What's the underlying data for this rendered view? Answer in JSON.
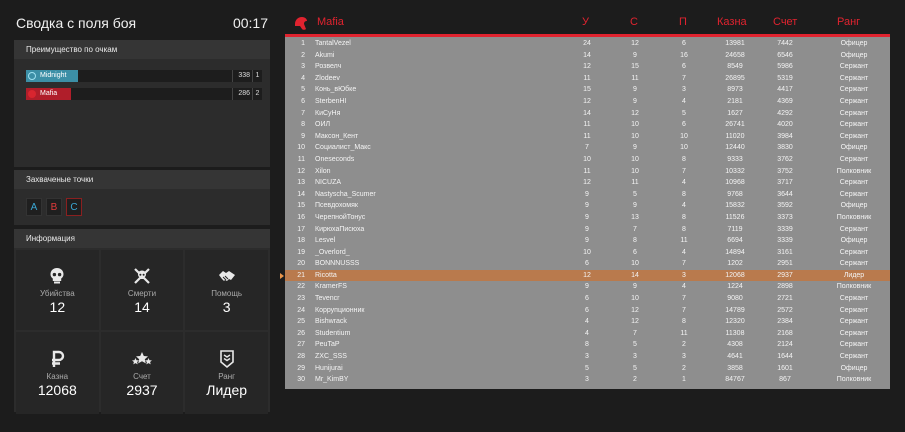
{
  "header": {
    "title": "Сводка с поля боя",
    "time": "00:17"
  },
  "score_panel": {
    "title": "Преимущество по очкам",
    "teams": [
      {
        "name": "Midnight",
        "score": "338",
        "rank": "1",
        "bar_fraction": 0.22,
        "color": "#3c8fa6",
        "icon": "midnight-icon"
      },
      {
        "name": "Mafia",
        "score": "286",
        "rank": "2",
        "bar_fraction": 0.19,
        "color": "#b01e2a",
        "icon": "mafia-icon"
      }
    ]
  },
  "points_panel": {
    "title": "Захваченые точки",
    "points": [
      "A",
      "B",
      "C"
    ]
  },
  "info_panel": {
    "title": "Информация",
    "stats": [
      {
        "icon": "skull-icon",
        "label": "Убийства",
        "value": "12"
      },
      {
        "icon": "skull-crossbones-icon",
        "label": "Смерти",
        "value": "14"
      },
      {
        "icon": "handshake-icon",
        "label": "Помощь",
        "value": "3"
      },
      {
        "icon": "ruble-icon",
        "label": "Казна",
        "value": "12068"
      },
      {
        "icon": "stars-icon",
        "label": "Счет",
        "value": "2937"
      },
      {
        "icon": "rank-badge-icon",
        "label": "Ранг",
        "value": "Лидер"
      }
    ]
  },
  "table": {
    "team_name": "Mafia",
    "columns": {
      "u": "У",
      "s": "С",
      "p": "П",
      "kazna": "Казна",
      "schet": "Счет",
      "rang": "Ранг"
    },
    "highlight_index": 20,
    "rows": [
      [
        "1",
        "TantalVezel",
        "24",
        "12",
        "6",
        "13981",
        "7442",
        "Офицер"
      ],
      [
        "2",
        "Akumi",
        "14",
        "9",
        "16",
        "24658",
        "6546",
        "Офицер"
      ],
      [
        "3",
        "Розвелч",
        "12",
        "15",
        "6",
        "8549",
        "5986",
        "Сержант"
      ],
      [
        "4",
        "Zlodeev",
        "11",
        "11",
        "7",
        "26895",
        "5319",
        "Сержант"
      ],
      [
        "5",
        "Конь_вЮбке",
        "15",
        "9",
        "3",
        "8973",
        "4417",
        "Сержант"
      ],
      [
        "6",
        "SterbenHI",
        "12",
        "9",
        "4",
        "2181",
        "4369",
        "Сержант"
      ],
      [
        "7",
        "КиСуНя",
        "14",
        "12",
        "5",
        "1627",
        "4292",
        "Сержант"
      ],
      [
        "8",
        "ОИЛ",
        "11",
        "10",
        "6",
        "26741",
        "4020",
        "Сержант"
      ],
      [
        "9",
        "Максон_Кент",
        "11",
        "10",
        "10",
        "11020",
        "3984",
        "Сержант"
      ],
      [
        "10",
        "Социалист_Макс",
        "7",
        "9",
        "10",
        "12440",
        "3830",
        "Офицер"
      ],
      [
        "11",
        "Oneseconds",
        "10",
        "10",
        "8",
        "9333",
        "3762",
        "Сержант"
      ],
      [
        "12",
        "Xilon",
        "11",
        "10",
        "7",
        "10332",
        "3752",
        "Полковник"
      ],
      [
        "13",
        "NICUZA",
        "12",
        "11",
        "4",
        "10968",
        "3717",
        "Сержант"
      ],
      [
        "14",
        "Nastyscha_Scumer",
        "9",
        "5",
        "8",
        "9768",
        "3644",
        "Сержант"
      ],
      [
        "15",
        "Псевдохомяк",
        "9",
        "9",
        "4",
        "15832",
        "3592",
        "Офицер"
      ],
      [
        "16",
        "ЧерепнойТонус",
        "9",
        "13",
        "8",
        "11526",
        "3373",
        "Полковник"
      ],
      [
        "17",
        "КирюхаПисюха",
        "9",
        "7",
        "8",
        "7119",
        "3339",
        "Сержант"
      ],
      [
        "18",
        "Lesvel",
        "9",
        "8",
        "11",
        "6694",
        "3339",
        "Офицер"
      ],
      [
        "19",
        "_Overlord_",
        "10",
        "6",
        "4",
        "14894",
        "3161",
        "Сержант"
      ],
      [
        "20",
        "BONNNUSSS",
        "6",
        "10",
        "7",
        "1202",
        "2951",
        "Сержант"
      ],
      [
        "21",
        "Ricotta",
        "12",
        "14",
        "3",
        "12068",
        "2937",
        "Лидер"
      ],
      [
        "22",
        "KramerFS",
        "9",
        "9",
        "4",
        "1224",
        "2898",
        "Полковник"
      ],
      [
        "23",
        "Tevencr",
        "6",
        "10",
        "7",
        "9080",
        "2721",
        "Сержант"
      ],
      [
        "24",
        "Коррупционник",
        "6",
        "12",
        "7",
        "14789",
        "2572",
        "Сержант"
      ],
      [
        "25",
        "Bishwrack",
        "4",
        "12",
        "8",
        "12320",
        "2384",
        "Сержант"
      ],
      [
        "26",
        "Studentium",
        "4",
        "7",
        "11",
        "11308",
        "2168",
        "Сержант"
      ],
      [
        "27",
        "PeuTaP",
        "8",
        "5",
        "2",
        "4308",
        "2124",
        "Сержант"
      ],
      [
        "28",
        "ZXC_SSS",
        "3",
        "3",
        "3",
        "4641",
        "1644",
        "Сержант"
      ],
      [
        "29",
        "Hunijurai",
        "5",
        "5",
        "2",
        "3858",
        "1601",
        "Офицер"
      ],
      [
        "30",
        "Mr_KimBY",
        "3",
        "2",
        "1",
        "84767",
        "867",
        "Полковник"
      ]
    ]
  }
}
